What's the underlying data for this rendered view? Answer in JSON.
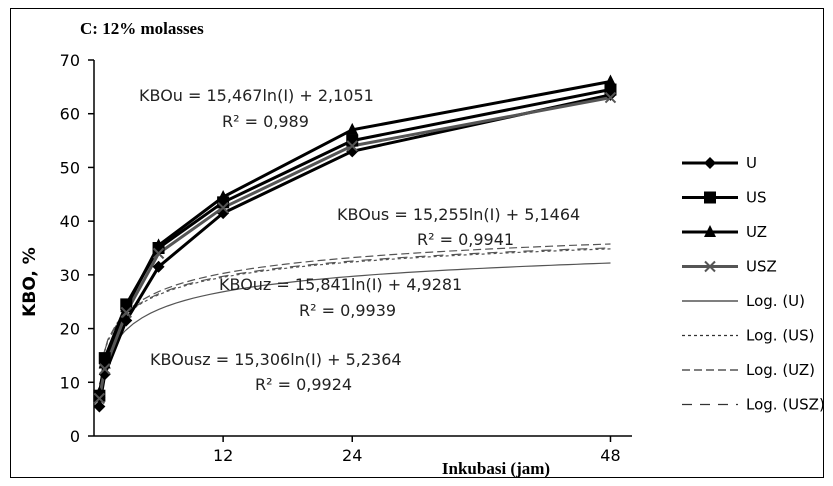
{
  "chart_data": {
    "type": "line",
    "title": "C: 12% molasses",
    "xlabel": "Inkubasi (jam)",
    "ylabel": "KBO, %",
    "xlim": [
      0,
      50
    ],
    "ylim": [
      0,
      70
    ],
    "xticks": [
      12,
      24,
      48
    ],
    "yticks": [
      0,
      10,
      20,
      30,
      40,
      50,
      60,
      70
    ],
    "grid": false,
    "legend_position": "right",
    "series": [
      {
        "name": "U",
        "marker": "diamond",
        "color": "#000000",
        "x": [
          0.5,
          1,
          3,
          6,
          12,
          24,
          48
        ],
        "y": [
          5.5,
          11.5,
          21.5,
          31.5,
          41.5,
          53,
          63.5
        ]
      },
      {
        "name": "US",
        "marker": "square",
        "color": "#000000",
        "x": [
          0.5,
          1,
          3,
          6,
          12,
          24,
          48
        ],
        "y": [
          7.5,
          14.5,
          24.5,
          35,
          43.5,
          55,
          64.5
        ]
      },
      {
        "name": "UZ",
        "marker": "triangle",
        "color": "#000000",
        "x": [
          0.5,
          1,
          3,
          6,
          12,
          24,
          48
        ],
        "y": [
          8,
          13.5,
          24,
          35.5,
          44.5,
          57,
          66
        ]
      },
      {
        "name": "USZ",
        "marker": "x",
        "color": "#555555",
        "x": [
          0.5,
          1,
          3,
          6,
          12,
          24,
          48
        ],
        "y": [
          7,
          12.5,
          23,
          34,
          42.5,
          54,
          63
        ]
      }
    ],
    "trendlines": [
      {
        "name": "Log. (U)",
        "style": "solid",
        "a": 15.467,
        "b": 2.1051
      },
      {
        "name": "Log. (US)",
        "style": "dotted",
        "a": 15.255,
        "b": 5.1464
      },
      {
        "name": "Log. (UZ)",
        "style": "dashed",
        "a": 15.841,
        "b": 4.9281
      },
      {
        "name": "Log. (USZ)",
        "style": "longdash",
        "a": 15.306,
        "b": 5.2364
      }
    ],
    "annotations": [
      {
        "line1": "KBOu = 15,467ln(I) + 2,1051",
        "line2": "R² = 0,989"
      },
      {
        "line1": "KBOus = 15,255ln(I) + 5,1464",
        "line2": "R² = 0,9941"
      },
      {
        "line1": "KBOuz = 15,841ln(I) + 4,9281",
        "line2": "R² = 0,9939"
      },
      {
        "line1": "KBOusz = 15,306ln(I) + 5,2364",
        "line2": "R² = 0,9924"
      }
    ]
  }
}
